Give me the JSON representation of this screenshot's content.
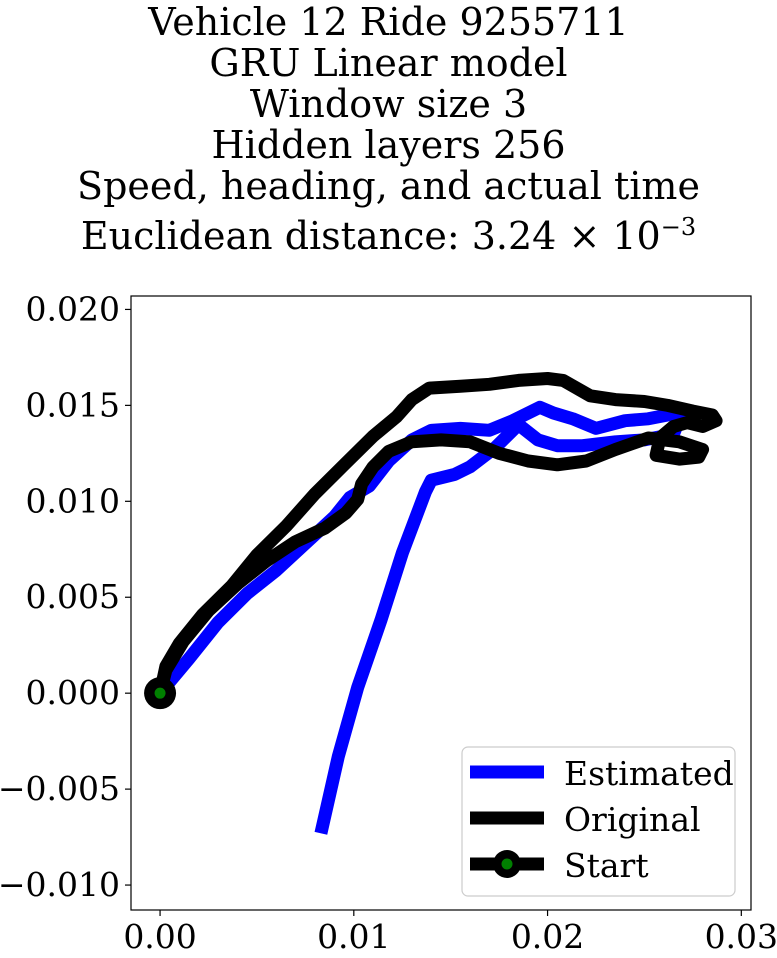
{
  "chart_data": {
    "type": "line",
    "title_lines": [
      "Vehicle 12 Ride 9255711",
      "GRU Linear model",
      "Window size 3",
      "Hidden layers 256",
      "Speed, heading, and actual time"
    ],
    "distance_label": "Euclidean distance: ",
    "distance_mantissa": "3.24",
    "distance_times": "×",
    "distance_base": "10",
    "distance_exponent": "−3",
    "xlim": [
      -0.0015,
      0.0305
    ],
    "ylim": [
      -0.0113,
      0.0207
    ],
    "xticks": [
      {
        "value": 0.0,
        "label": "0.00"
      },
      {
        "value": 0.01,
        "label": "0.01"
      },
      {
        "value": 0.02,
        "label": "0.02"
      },
      {
        "value": 0.03,
        "label": "0.03"
      }
    ],
    "yticks": [
      {
        "value": -0.01,
        "label": "−0.010"
      },
      {
        "value": -0.005,
        "label": "−0.005"
      },
      {
        "value": 0.0,
        "label": "0.000"
      },
      {
        "value": 0.005,
        "label": "0.005"
      },
      {
        "value": 0.01,
        "label": "0.010"
      },
      {
        "value": 0.015,
        "label": "0.015"
      },
      {
        "value": 0.02,
        "label": "0.020"
      }
    ],
    "legend_position": "lower-right",
    "series": [
      {
        "name": "Estimated",
        "color": "#0000ff",
        "points": [
          [
            0.0,
            0.0
          ],
          [
            0.0015,
            0.0018
          ],
          [
            0.003,
            0.0037
          ],
          [
            0.0045,
            0.0052
          ],
          [
            0.006,
            0.0064
          ],
          [
            0.0075,
            0.0078
          ],
          [
            0.009,
            0.0092
          ],
          [
            0.0098,
            0.0102
          ],
          [
            0.0108,
            0.0108
          ],
          [
            0.0118,
            0.0121
          ],
          [
            0.013,
            0.0132
          ],
          [
            0.014,
            0.0137
          ],
          [
            0.0155,
            0.0138
          ],
          [
            0.017,
            0.0137
          ],
          [
            0.0182,
            0.0142
          ],
          [
            0.0196,
            0.0149
          ],
          [
            0.0203,
            0.0146
          ],
          [
            0.0213,
            0.0143
          ],
          [
            0.0225,
            0.0138
          ],
          [
            0.024,
            0.0142
          ],
          [
            0.0252,
            0.0143
          ],
          [
            0.0262,
            0.0145
          ],
          [
            0.027,
            0.0148
          ],
          [
            0.0265,
            0.0135
          ],
          [
            0.025,
            0.0132
          ],
          [
            0.0235,
            0.0131
          ],
          [
            0.0218,
            0.0129
          ],
          [
            0.0205,
            0.0129
          ],
          [
            0.0195,
            0.0132
          ],
          [
            0.0185,
            0.014
          ],
          [
            0.0173,
            0.0128
          ],
          [
            0.016,
            0.0118
          ],
          [
            0.0152,
            0.0114
          ],
          [
            0.014,
            0.0111
          ],
          [
            0.0137,
            0.0105
          ],
          [
            0.0125,
            0.0073
          ],
          [
            0.0114,
            0.0038
          ],
          [
            0.0102,
            0.0003
          ],
          [
            0.0092,
            -0.0033
          ],
          [
            0.0083,
            -0.0073
          ]
        ]
      },
      {
        "name": "Original",
        "color": "#000000",
        "points": [
          [
            0.0,
            0.0
          ],
          [
            0.0003,
            0.0014
          ],
          [
            0.001,
            0.0026
          ],
          [
            0.0022,
            0.0041
          ],
          [
            0.0037,
            0.0056
          ],
          [
            0.005,
            0.0072
          ],
          [
            0.0065,
            0.0087
          ],
          [
            0.008,
            0.0104
          ],
          [
            0.0095,
            0.0119
          ],
          [
            0.011,
            0.0134
          ],
          [
            0.0122,
            0.0144
          ],
          [
            0.013,
            0.0153
          ],
          [
            0.0139,
            0.0159
          ],
          [
            0.0155,
            0.016
          ],
          [
            0.017,
            0.0161
          ],
          [
            0.0185,
            0.0163
          ],
          [
            0.02,
            0.0164
          ],
          [
            0.0208,
            0.0163
          ],
          [
            0.0222,
            0.0155
          ],
          [
            0.0235,
            0.0153
          ],
          [
            0.025,
            0.0152
          ],
          [
            0.0262,
            0.015
          ],
          [
            0.0275,
            0.0147
          ],
          [
            0.0285,
            0.0145
          ],
          [
            0.0287,
            0.0142
          ],
          [
            0.028,
            0.0139
          ],
          [
            0.0272,
            0.0141
          ],
          [
            0.0265,
            0.0139
          ],
          [
            0.0258,
            0.0133
          ],
          [
            0.0256,
            0.0124
          ],
          [
            0.0268,
            0.0122
          ],
          [
            0.0278,
            0.0123
          ],
          [
            0.028,
            0.0127
          ],
          [
            0.0268,
            0.0131
          ],
          [
            0.0252,
            0.0133
          ],
          [
            0.0235,
            0.0127
          ],
          [
            0.022,
            0.0121
          ],
          [
            0.0205,
            0.0119
          ],
          [
            0.019,
            0.0121
          ],
          [
            0.0175,
            0.0125
          ],
          [
            0.016,
            0.0131
          ],
          [
            0.0145,
            0.0132
          ],
          [
            0.013,
            0.0131
          ],
          [
            0.0118,
            0.0126
          ],
          [
            0.011,
            0.0118
          ],
          [
            0.0104,
            0.0109
          ],
          [
            0.0102,
            0.0101
          ],
          [
            0.0096,
            0.0094
          ],
          [
            0.0085,
            0.0086
          ],
          [
            0.007,
            0.0079
          ],
          [
            0.0055,
            0.0069
          ],
          [
            0.004,
            0.0057
          ],
          [
            0.0025,
            0.0043
          ],
          [
            0.0012,
            0.0027
          ],
          [
            0.0003,
            0.0012
          ],
          [
            0.0,
            0.0
          ]
        ]
      }
    ],
    "start": {
      "name": "Start",
      "x": 0.0,
      "y": 0.0,
      "outer_color": "#000000",
      "inner_color": "#008000"
    }
  }
}
